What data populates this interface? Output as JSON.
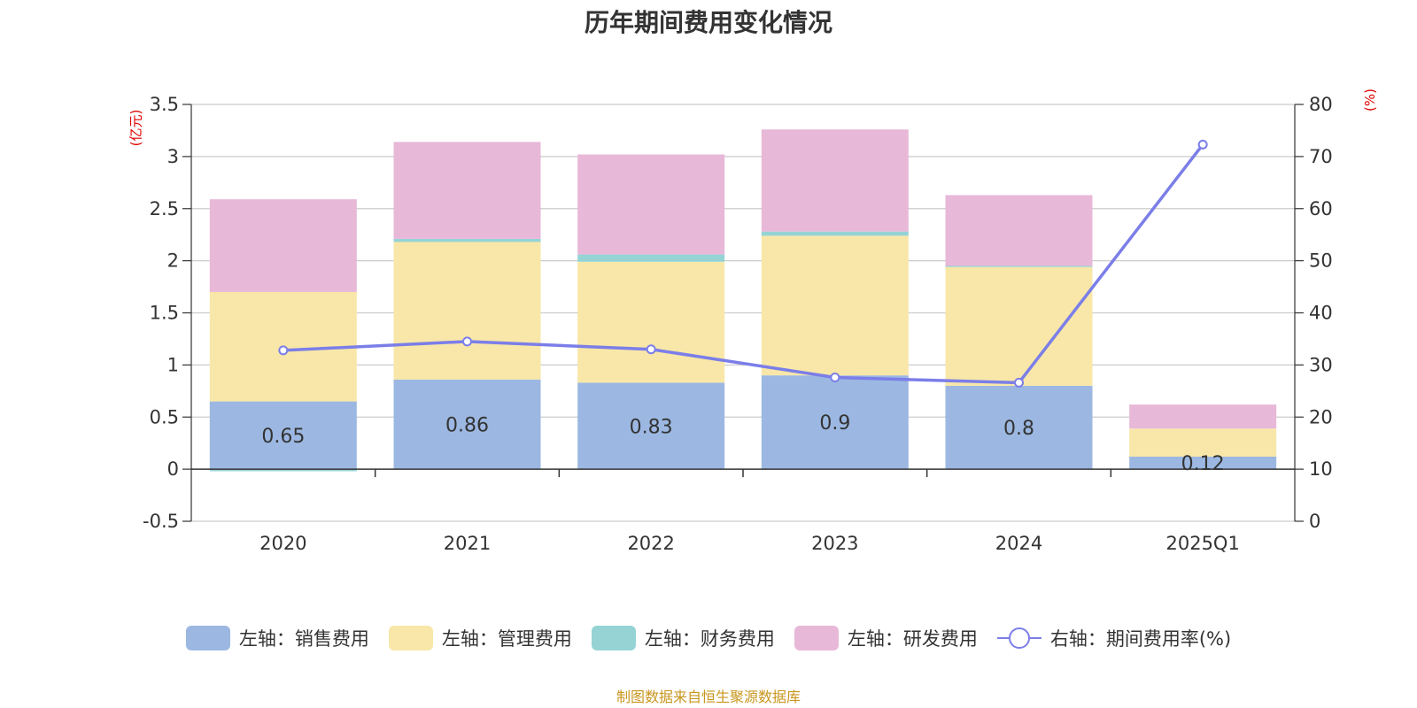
{
  "title": "历年期间费用变化情况",
  "left_unit": "(亿元)",
  "right_unit": "(%)",
  "source": "制图数据来自恒生聚源数据库",
  "colors": {
    "sales": "#9cb8e2",
    "admin": "#f8e7a8",
    "finance": "#95d3d5",
    "rd": "#e8b8d9",
    "rate": "#7b7ee8",
    "grid": "#cccccc",
    "axis": "#333333"
  },
  "legend": [
    {
      "label": "左轴：销售费用",
      "key": "sales"
    },
    {
      "label": "左轴：管理费用",
      "key": "admin"
    },
    {
      "label": "左轴：财务费用",
      "key": "finance"
    },
    {
      "label": "左轴：研发费用",
      "key": "rd"
    },
    {
      "label": "右轴：期间费用率(%)",
      "key": "rate"
    }
  ],
  "chart_data": {
    "type": "bar",
    "stacked": true,
    "categories": [
      "2020",
      "2021",
      "2022",
      "2023",
      "2024",
      "2025Q1"
    ],
    "series": [
      {
        "name": "左轴：销售费用",
        "key": "sales",
        "axis": "left",
        "values": [
          0.65,
          0.86,
          0.83,
          0.9,
          0.8,
          0.12
        ],
        "data_labels": [
          "0.65",
          "0.86",
          "0.83",
          "0.9",
          "0.8",
          "0.12"
        ]
      },
      {
        "name": "左轴：管理费用",
        "key": "admin",
        "axis": "left",
        "values": [
          1.05,
          1.32,
          1.16,
          1.34,
          1.14,
          0.27
        ]
      },
      {
        "name": "左轴：财务费用",
        "key": "finance",
        "axis": "left",
        "values": [
          -0.02,
          0.03,
          0.07,
          0.04,
          0.01,
          0.0
        ]
      },
      {
        "name": "左轴：研发费用",
        "key": "rd",
        "axis": "left",
        "values": [
          0.89,
          0.93,
          0.96,
          0.98,
          0.68,
          0.23
        ]
      },
      {
        "name": "右轴：期间费用率(%)",
        "key": "rate",
        "axis": "right",
        "type": "line",
        "values": [
          32.8,
          34.5,
          33.0,
          27.6,
          26.6,
          72.3
        ]
      }
    ],
    "left_axis": {
      "min": -0.5,
      "max": 3.5,
      "ticks": [
        "-0.5",
        "0",
        "0.5",
        "1",
        "1.5",
        "2",
        "2.5",
        "3",
        "3.5"
      ],
      "tick_values": [
        -0.5,
        0,
        0.5,
        1,
        1.5,
        2,
        2.5,
        3,
        3.5
      ]
    },
    "right_axis": {
      "min": 0,
      "max": 80,
      "ticks": [
        "0",
        "10",
        "20",
        "30",
        "40",
        "50",
        "60",
        "70",
        "80"
      ],
      "tick_values": [
        0,
        10,
        20,
        30,
        40,
        50,
        60,
        70,
        80
      ]
    },
    "grid": true,
    "legend_position": "bottom"
  }
}
